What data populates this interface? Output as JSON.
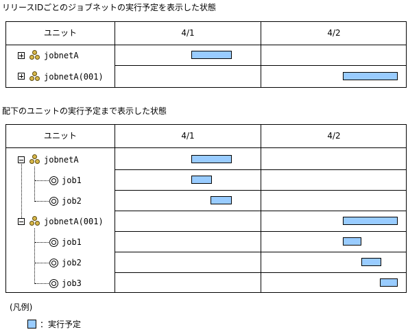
{
  "caption1": "リリースIDごとのジョブネットの実行予定を表示した状態",
  "caption2": "配下のユニットの実行予定まで表示した状態",
  "table1": {
    "headers": {
      "unit": "ユニット",
      "day1": "4/1",
      "day2": "4/2"
    },
    "rows": [
      {
        "label": "jobnetA",
        "expanded": false
      },
      {
        "label": "jobnetA(001)",
        "expanded": false
      }
    ]
  },
  "table2": {
    "headers": {
      "unit": "ユニット",
      "day1": "4/1",
      "day2": "4/2"
    },
    "rows": [
      {
        "label": "jobnetA",
        "type": "jobnet",
        "expanded": true
      },
      {
        "label": "job1",
        "type": "job"
      },
      {
        "label": "job2",
        "type": "job"
      },
      {
        "label": "jobnetA(001)",
        "type": "jobnet",
        "expanded": true
      },
      {
        "label": "job1",
        "type": "job"
      },
      {
        "label": "job2",
        "type": "job"
      },
      {
        "label": "job3",
        "type": "job"
      }
    ]
  },
  "legend": {
    "title": "(凡例)",
    "item": "：実行予定",
    "color": "#99ccff"
  },
  "icons": {
    "expand": "plus-box-icon",
    "collapse": "minus-box-icon",
    "jobnet": "jobnet-icon",
    "job": "job-icon"
  }
}
